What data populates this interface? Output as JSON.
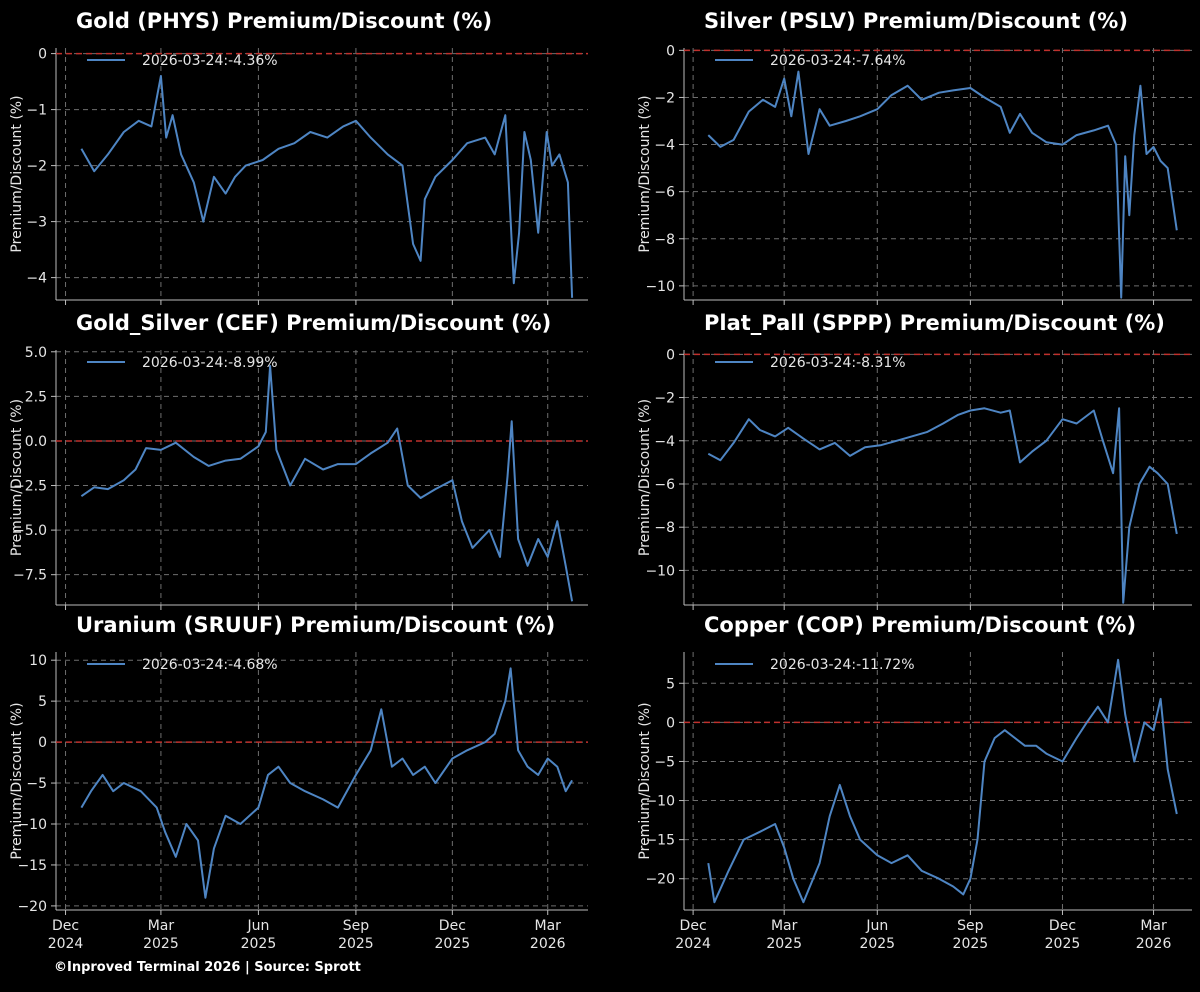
{
  "footer": "©Inproved Terminal 2026 | Source: Sprott",
  "colors": {
    "line": "#4e85c3",
    "zero": "#c0302c",
    "grid": "#6e6e6e",
    "background": "#000000"
  },
  "x_ticks": [
    {
      "date": "2024-12-01",
      "label": [
        "Dec",
        "2024"
      ]
    },
    {
      "date": "2025-03-01",
      "label": [
        "Mar",
        "2025"
      ]
    },
    {
      "date": "2025-06-01",
      "label": [
        "Jun",
        "2025"
      ]
    },
    {
      "date": "2025-09-01",
      "label": [
        "Sep",
        "2025"
      ]
    },
    {
      "date": "2025-12-01",
      "label": [
        "Dec",
        "2025"
      ]
    },
    {
      "date": "2026-03-01",
      "label": [
        "Mar",
        "2026"
      ]
    }
  ],
  "xlim": [
    "2024-11-22",
    "2026-04-08"
  ],
  "chart_data": [
    {
      "type": "line",
      "title": "Gold (PHYS) Premium/Discount (%)",
      "ylabel": "Premium/Discount (%)",
      "legend": "2026-03-24:-4.36%",
      "ylim": [
        -4.4,
        0.1
      ],
      "yticks": [
        0,
        -1,
        -2,
        -3,
        -4
      ],
      "ytick_labels": [
        "0",
        "−1",
        "−2",
        "−3",
        "−4"
      ],
      "series": [
        {
          "x": [
            "2024-12-16",
            "2024-12-28",
            "2025-01-10",
            "2025-01-25",
            "2025-02-08",
            "2025-02-20",
            "2025-03-01",
            "2025-03-06",
            "2025-03-12",
            "2025-03-20",
            "2025-04-01",
            "2025-04-10",
            "2025-04-20",
            "2025-05-01",
            "2025-05-10",
            "2025-05-20",
            "2025-06-05",
            "2025-06-20",
            "2025-07-05",
            "2025-07-20",
            "2025-08-05",
            "2025-08-20",
            "2025-09-01",
            "2025-09-15",
            "2025-10-01",
            "2025-10-15",
            "2025-10-25",
            "2025-11-01",
            "2025-11-05",
            "2025-11-15",
            "2025-12-01",
            "2025-12-15",
            "2026-01-01",
            "2026-01-10",
            "2026-01-20",
            "2026-01-28",
            "2026-02-02",
            "2026-02-07",
            "2026-02-13",
            "2026-02-20",
            "2026-02-28",
            "2026-03-05",
            "2026-03-12",
            "2026-03-20",
            "2026-03-24"
          ],
          "y": [
            -1.7,
            -2.1,
            -1.8,
            -1.4,
            -1.2,
            -1.3,
            -0.4,
            -1.5,
            -1.1,
            -1.8,
            -2.3,
            -3.0,
            -2.2,
            -2.5,
            -2.2,
            -2.0,
            -1.9,
            -1.7,
            -1.6,
            -1.4,
            -1.5,
            -1.3,
            -1.2,
            -1.5,
            -1.8,
            -2.0,
            -3.4,
            -3.7,
            -2.6,
            -2.2,
            -1.9,
            -1.6,
            -1.5,
            -1.8,
            -1.1,
            -4.1,
            -3.2,
            -1.4,
            -1.9,
            -3.2,
            -1.4,
            -2.0,
            -1.8,
            -2.3,
            -4.36
          ]
        }
      ]
    },
    {
      "type": "line",
      "title": "Silver (PSLV) Premium/Discount (%)",
      "ylabel": "Premium/Discount (%)",
      "legend": "2026-03-24:-7.64%",
      "ylim": [
        -10.6,
        0.1
      ],
      "yticks": [
        0,
        -2,
        -4,
        -6,
        -8,
        -10
      ],
      "ytick_labels": [
        "0",
        "−2",
        "−4",
        "−6",
        "−8",
        "−10"
      ],
      "series": [
        {
          "x": [
            "2024-12-16",
            "2024-12-28",
            "2025-01-10",
            "2025-01-25",
            "2025-02-08",
            "2025-02-20",
            "2025-03-01",
            "2025-03-08",
            "2025-03-15",
            "2025-03-25",
            "2025-04-05",
            "2025-04-15",
            "2025-05-01",
            "2025-05-15",
            "2025-06-01",
            "2025-06-15",
            "2025-07-01",
            "2025-07-15",
            "2025-08-01",
            "2025-08-15",
            "2025-09-01",
            "2025-09-15",
            "2025-10-01",
            "2025-10-10",
            "2025-10-20",
            "2025-11-01",
            "2025-11-15",
            "2025-12-01",
            "2025-12-15",
            "2026-01-01",
            "2026-01-15",
            "2026-01-23",
            "2026-01-28",
            "2026-02-01",
            "2026-02-05",
            "2026-02-10",
            "2026-02-16",
            "2026-02-22",
            "2026-03-01",
            "2026-03-08",
            "2026-03-15",
            "2026-03-24"
          ],
          "y": [
            -3.6,
            -4.1,
            -3.8,
            -2.6,
            -2.1,
            -2.4,
            -1.2,
            -2.8,
            -0.9,
            -4.4,
            -2.5,
            -3.2,
            -3.0,
            -2.8,
            -2.5,
            -1.9,
            -1.5,
            -2.1,
            -1.8,
            -1.7,
            -1.6,
            -2.0,
            -2.4,
            -3.5,
            -2.7,
            -3.5,
            -3.9,
            -4.0,
            -3.6,
            -3.4,
            -3.2,
            -4.0,
            -10.5,
            -4.5,
            -7.0,
            -3.6,
            -1.5,
            -4.4,
            -4.1,
            -4.7,
            -5.0,
            -7.64
          ]
        }
      ]
    },
    {
      "type": "line",
      "title": "Gold_Silver (CEF) Premium/Discount (%)",
      "ylabel": "Premium/Discount (%)",
      "legend": "2026-03-24:-8.99%",
      "ylim": [
        -9.2,
        5.1
      ],
      "yticks": [
        5.0,
        2.5,
        0.0,
        -2.5,
        -5.0,
        -7.5
      ],
      "ytick_labels": [
        "5.0",
        "2.5",
        "0.0",
        "−2.5",
        "−5.0",
        "−7.5"
      ],
      "series": [
        {
          "x": [
            "2024-12-16",
            "2024-12-28",
            "2025-01-10",
            "2025-01-25",
            "2025-02-05",
            "2025-02-15",
            "2025-03-01",
            "2025-03-15",
            "2025-04-01",
            "2025-04-15",
            "2025-05-01",
            "2025-05-15",
            "2025-06-01",
            "2025-06-08",
            "2025-06-12",
            "2025-06-18",
            "2025-07-01",
            "2025-07-15",
            "2025-08-01",
            "2025-08-15",
            "2025-09-01",
            "2025-09-15",
            "2025-10-01",
            "2025-10-10",
            "2025-10-20",
            "2025-11-01",
            "2025-11-15",
            "2025-12-01",
            "2025-12-10",
            "2025-12-20",
            "2026-01-05",
            "2026-01-15",
            "2026-01-22",
            "2026-01-26",
            "2026-02-01",
            "2026-02-10",
            "2026-02-20",
            "2026-03-01",
            "2026-03-10",
            "2026-03-18",
            "2026-03-24"
          ],
          "y": [
            -3.1,
            -2.6,
            -2.7,
            -2.2,
            -1.6,
            -0.4,
            -0.5,
            -0.1,
            -0.9,
            -1.4,
            -1.1,
            -1.0,
            -0.3,
            0.5,
            4.2,
            -0.5,
            -2.5,
            -1.0,
            -1.6,
            -1.3,
            -1.3,
            -0.7,
            -0.1,
            0.7,
            -2.5,
            -3.2,
            -2.7,
            -2.2,
            -4.5,
            -6.0,
            -5.0,
            -6.5,
            -2.0,
            1.1,
            -5.5,
            -7.0,
            -5.5,
            -6.5,
            -4.5,
            -7.0,
            -8.99
          ]
        }
      ]
    },
    {
      "type": "line",
      "title": "Plat_Pall (SPPP) Premium/Discount (%)",
      "ylabel": "Premium/Discount (%)",
      "legend": "2026-03-24:-8.31%",
      "ylim": [
        -11.6,
        0.2
      ],
      "yticks": [
        0,
        -2,
        -4,
        -6,
        -8,
        -10
      ],
      "ytick_labels": [
        "0",
        "−2",
        "−4",
        "−6",
        "−8",
        "−10"
      ],
      "series": [
        {
          "x": [
            "2024-12-16",
            "2024-12-28",
            "2025-01-10",
            "2025-01-25",
            "2025-02-05",
            "2025-02-20",
            "2025-03-05",
            "2025-03-20",
            "2025-04-05",
            "2025-04-20",
            "2025-05-05",
            "2025-05-20",
            "2025-06-05",
            "2025-06-20",
            "2025-07-05",
            "2025-07-20",
            "2025-08-05",
            "2025-08-20",
            "2025-09-01",
            "2025-09-15",
            "2025-10-01",
            "2025-10-10",
            "2025-10-20",
            "2025-11-01",
            "2025-11-15",
            "2025-12-01",
            "2025-12-15",
            "2026-01-01",
            "2026-01-10",
            "2026-01-20",
            "2026-01-26",
            "2026-01-30",
            "2026-02-05",
            "2026-02-15",
            "2026-02-25",
            "2026-03-05",
            "2026-03-15",
            "2026-03-24"
          ],
          "y": [
            -4.6,
            -4.9,
            -4.1,
            -3.0,
            -3.5,
            -3.8,
            -3.4,
            -3.9,
            -4.4,
            -4.1,
            -4.7,
            -4.3,
            -4.2,
            -4.0,
            -3.8,
            -3.6,
            -3.2,
            -2.8,
            -2.6,
            -2.5,
            -2.7,
            -2.6,
            -5.0,
            -4.5,
            -4.0,
            -3.0,
            -3.2,
            -2.6,
            -4.0,
            -5.5,
            -2.5,
            -11.5,
            -8.0,
            -6.0,
            -5.2,
            -5.5,
            -6.0,
            -8.31
          ]
        }
      ]
    },
    {
      "type": "line",
      "title": "Uranium (SRUUF) Premium/Discount (%)",
      "ylabel": "Premium/Discount (%)",
      "legend": "2026-03-24:-4.68%",
      "ylim": [
        -20.5,
        11
      ],
      "yticks": [
        10,
        5,
        0,
        -5,
        -10,
        -15,
        -20
      ],
      "ytick_labels": [
        "10",
        "5",
        "0",
        "−5",
        "−10",
        "−15",
        "−20"
      ],
      "series": [
        {
          "x": [
            "2024-12-16",
            "2024-12-25",
            "2025-01-05",
            "2025-01-15",
            "2025-01-25",
            "2025-02-10",
            "2025-02-25",
            "2025-03-05",
            "2025-03-15",
            "2025-03-25",
            "2025-04-05",
            "2025-04-12",
            "2025-04-20",
            "2025-05-01",
            "2025-05-15",
            "2025-06-01",
            "2025-06-10",
            "2025-06-20",
            "2025-07-01",
            "2025-07-15",
            "2025-08-01",
            "2025-08-15",
            "2025-09-01",
            "2025-09-15",
            "2025-09-25",
            "2025-10-05",
            "2025-10-15",
            "2025-10-25",
            "2025-11-05",
            "2025-11-15",
            "2025-12-01",
            "2025-12-15",
            "2026-01-01",
            "2026-01-10",
            "2026-01-20",
            "2026-01-25",
            "2026-02-01",
            "2026-02-10",
            "2026-02-20",
            "2026-03-01",
            "2026-03-10",
            "2026-03-18",
            "2026-03-24"
          ],
          "y": [
            -8,
            -6,
            -4,
            -6,
            -5,
            -6,
            -8,
            -11,
            -14,
            -10,
            -12,
            -19,
            -13,
            -9,
            -10,
            -8,
            -4,
            -3,
            -5,
            -6,
            -7,
            -8,
            -4,
            -1,
            4,
            -3,
            -2,
            -4,
            -3,
            -5,
            -2,
            -1,
            0,
            1,
            5,
            9,
            -1,
            -3,
            -4,
            -2,
            -3,
            -6,
            -4.68
          ]
        }
      ]
    },
    {
      "type": "line",
      "title": "Copper (COP) Premium/Discount (%)",
      "ylabel": "Premium/Discount (%)",
      "legend": "2026-03-24:-11.72%",
      "ylim": [
        -24,
        9
      ],
      "yticks": [
        5,
        0,
        -5,
        -10,
        -15,
        -20
      ],
      "ytick_labels": [
        "5",
        "0",
        "−5",
        "−10",
        "−15",
        "−20"
      ],
      "series": [
        {
          "x": [
            "2024-12-16",
            "2024-12-22",
            "2025-01-05",
            "2025-01-20",
            "2025-02-05",
            "2025-02-20",
            "2025-03-01",
            "2025-03-10",
            "2025-03-20",
            "2025-04-05",
            "2025-04-15",
            "2025-04-25",
            "2025-05-05",
            "2025-05-15",
            "2025-06-01",
            "2025-06-15",
            "2025-07-01",
            "2025-07-15",
            "2025-08-01",
            "2025-08-15",
            "2025-08-25",
            "2025-09-01",
            "2025-09-08",
            "2025-09-15",
            "2025-09-25",
            "2025-10-05",
            "2025-10-15",
            "2025-10-25",
            "2025-11-05",
            "2025-11-15",
            "2025-12-01",
            "2025-12-15",
            "2025-12-25",
            "2026-01-05",
            "2026-01-15",
            "2026-01-25",
            "2026-02-01",
            "2026-02-10",
            "2026-02-20",
            "2026-03-01",
            "2026-03-08",
            "2026-03-15",
            "2026-03-24"
          ],
          "y": [
            -18,
            -23,
            -19,
            -15,
            -14,
            -13,
            -16,
            -20,
            -23,
            -18,
            -12,
            -8,
            -12,
            -15,
            -17,
            -18,
            -17,
            -19,
            -20,
            -21,
            -22,
            -20,
            -15,
            -5,
            -2,
            -1,
            -2,
            -3,
            -3,
            -4,
            -5,
            -2,
            0,
            2,
            0,
            8,
            1,
            -5,
            0,
            -1,
            3,
            -6,
            -11.72
          ]
        }
      ]
    }
  ]
}
